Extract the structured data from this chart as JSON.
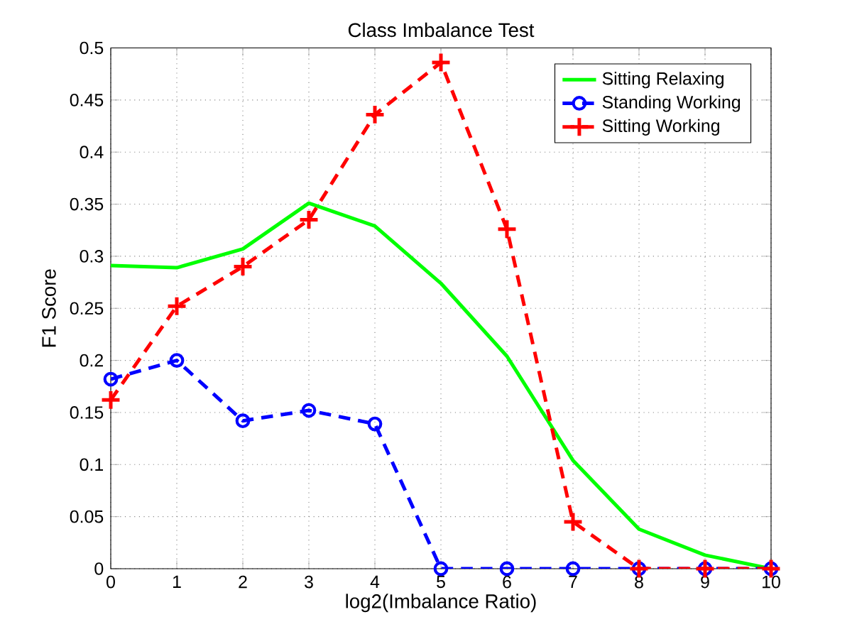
{
  "chart_data": {
    "type": "line",
    "title": "Class Imbalance Test",
    "xlabel": "log2(Imbalance Ratio)",
    "ylabel": "F1 Score",
    "x": [
      0,
      1,
      2,
      3,
      4,
      5,
      6,
      7,
      8,
      9,
      10
    ],
    "series": [
      {
        "name": "Sitting Relaxing",
        "color": "#00ff00",
        "marker": "none",
        "line_style": "solid",
        "values": [
          0.291,
          0.289,
          0.307,
          0.351,
          0.329,
          0.274,
          0.204,
          0.104,
          0.038,
          0.013,
          0
        ]
      },
      {
        "name": "Standing Working",
        "color": "#0000ff",
        "marker": "circle",
        "line_style": "dashed",
        "values": [
          0.182,
          0.2,
          0.142,
          0.152,
          0.139,
          0,
          0,
          0,
          0,
          0,
          0
        ]
      },
      {
        "name": "Sitting Working",
        "color": "#ff0000",
        "marker": "cross",
        "line_style": "dashed",
        "values": [
          0.162,
          0.252,
          0.29,
          0.335,
          0.436,
          0.486,
          0.326,
          0.045,
          0,
          0,
          0
        ]
      }
    ],
    "xlim": [
      0,
      10
    ],
    "ylim": [
      0,
      0.5
    ],
    "xticks": [
      0,
      1,
      2,
      3,
      4,
      5,
      6,
      7,
      8,
      9,
      10
    ],
    "yticks": [
      0,
      0.05,
      0.1,
      0.15,
      0.2,
      0.25,
      0.3,
      0.35,
      0.4,
      0.45,
      0.5
    ],
    "grid": true,
    "legend": "top right"
  }
}
